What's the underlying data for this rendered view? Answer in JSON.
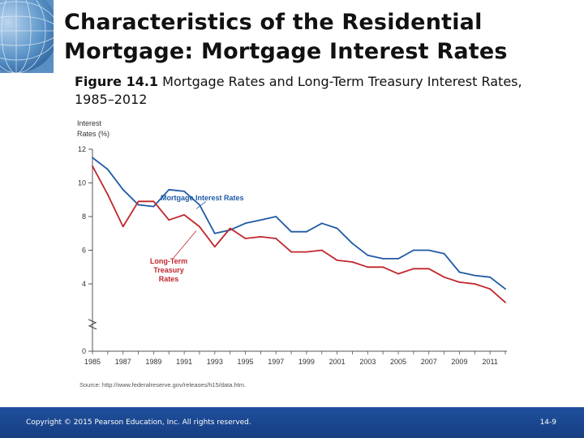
{
  "slide": {
    "title_line1": "Characteristics of the Residential",
    "title_line2": "Mortgage: Mortgage Interest Rates",
    "figure_label": "Figure 14.1",
    "figure_caption": "Mortgage Rates and Long-Term Treasury Interest Rates, 1985–2012"
  },
  "footer": {
    "copyright": "Copyright © 2015 Pearson Education, Inc. All rights reserved.",
    "page": "14-9"
  },
  "colors": {
    "mortgage": "#1f5aa5",
    "treasury": "#c0262c",
    "annotation_text": "#1f5aa5",
    "treasury_label": "#c0262c",
    "footer_bg": "#1e4f9c"
  },
  "chart_data": {
    "type": "line",
    "title": "",
    "ylabel_line1": "Interest",
    "ylabel_line2": "Rates (%)",
    "xlabel": "",
    "xlim": [
      1985,
      2012
    ],
    "ylim": [
      0,
      12
    ],
    "yticks": [
      0,
      4,
      6,
      8,
      10,
      12
    ],
    "xticks": [
      1985,
      1987,
      1989,
      1991,
      1993,
      1995,
      1997,
      1999,
      2001,
      2003,
      2005,
      2007,
      2009,
      2011
    ],
    "axis_break": true,
    "source": "Source: http://www.federalreserve.gov/releases/h15/data.htm.",
    "series": [
      {
        "name": "Mortgage Interest Rates",
        "x": [
          1985,
          1986,
          1987,
          1988,
          1989,
          1990,
          1991,
          1992,
          1993,
          1994,
          1995,
          1996,
          1997,
          1998,
          1999,
          2000,
          2001,
          2002,
          2003,
          2004,
          2005,
          2006,
          2007,
          2008,
          2009,
          2010,
          2011,
          2012
        ],
        "values": [
          11.5,
          10.8,
          9.6,
          8.7,
          8.6,
          9.6,
          9.5,
          8.7,
          7.0,
          7.2,
          7.6,
          7.8,
          8.0,
          7.1,
          7.1,
          7.6,
          7.3,
          6.4,
          5.7,
          5.5,
          5.5,
          6.0,
          6.0,
          5.8,
          4.7,
          4.5,
          4.4,
          3.7
        ]
      },
      {
        "name": "Long-Term Treasury Rates",
        "x": [
          1985,
          1986,
          1987,
          1988,
          1989,
          1990,
          1991,
          1992,
          1993,
          1994,
          1995,
          1996,
          1997,
          1998,
          1999,
          2000,
          2001,
          2002,
          2003,
          2004,
          2005,
          2006,
          2007,
          2008,
          2009,
          2010,
          2011,
          2012
        ],
        "values": [
          11.0,
          9.3,
          7.4,
          8.9,
          8.9,
          7.8,
          8.1,
          7.4,
          6.2,
          7.3,
          6.7,
          6.8,
          6.7,
          5.9,
          5.9,
          6.0,
          5.4,
          5.3,
          5.0,
          5.0,
          4.6,
          4.9,
          4.9,
          4.4,
          4.1,
          4.0,
          3.7,
          2.9
        ]
      }
    ],
    "annotations": [
      {
        "text": "Mortgage Interest Rates",
        "series": 0,
        "points_to_x": 1992
      },
      {
        "text_line1": "Long-Term",
        "text_line2": "Treasury",
        "text_line3": "Rates",
        "series": 1,
        "points_to_x": 1993
      }
    ]
  }
}
